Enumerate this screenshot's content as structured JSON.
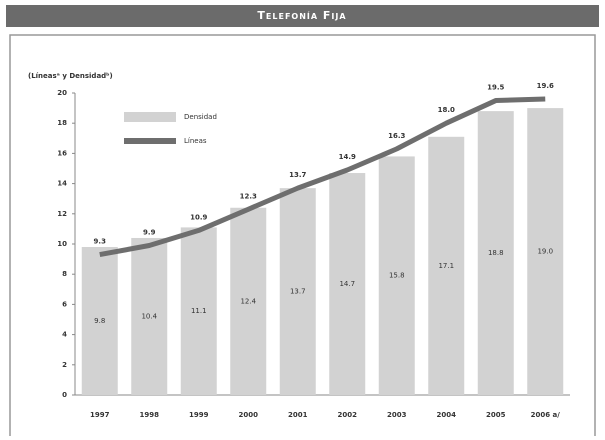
{
  "header": {
    "title": "Telefonía Fija"
  },
  "chart_data": {
    "type": "bar_line",
    "y_label": "(Líneasᵃ y Densidadᵇ)",
    "categories": [
      "1997",
      "1998",
      "1999",
      "2000",
      "2001",
      "2002",
      "2003",
      "2004",
      "2005",
      "2006 a/"
    ],
    "series": [
      {
        "name": "Densidad",
        "type": "bar",
        "color": "#d2d2d2",
        "values": [
          9.8,
          10.4,
          11.1,
          12.4,
          13.7,
          14.7,
          15.8,
          17.1,
          18.8,
          19.0
        ],
        "value_labels": [
          "9.8",
          "10.4",
          "11.1",
          "12.4",
          "13.7",
          "14.7",
          "15.8",
          "17.1",
          "18.8",
          "19.0"
        ]
      },
      {
        "name": "Líneas",
        "type": "line",
        "color": "#6e6e6e",
        "values": [
          9.3,
          9.9,
          10.9,
          12.3,
          13.7,
          14.9,
          16.3,
          18.0,
          19.5,
          19.6
        ],
        "value_labels": [
          "9.3",
          "9.9",
          "10.9",
          "12.3",
          "13.7",
          "14.9",
          "16.3",
          "18.0",
          "19.5",
          "19.6"
        ]
      }
    ],
    "ylim": [
      0,
      20
    ],
    "yticks": [
      0,
      2,
      4,
      6,
      8,
      10,
      12,
      14,
      16,
      18,
      20
    ]
  }
}
